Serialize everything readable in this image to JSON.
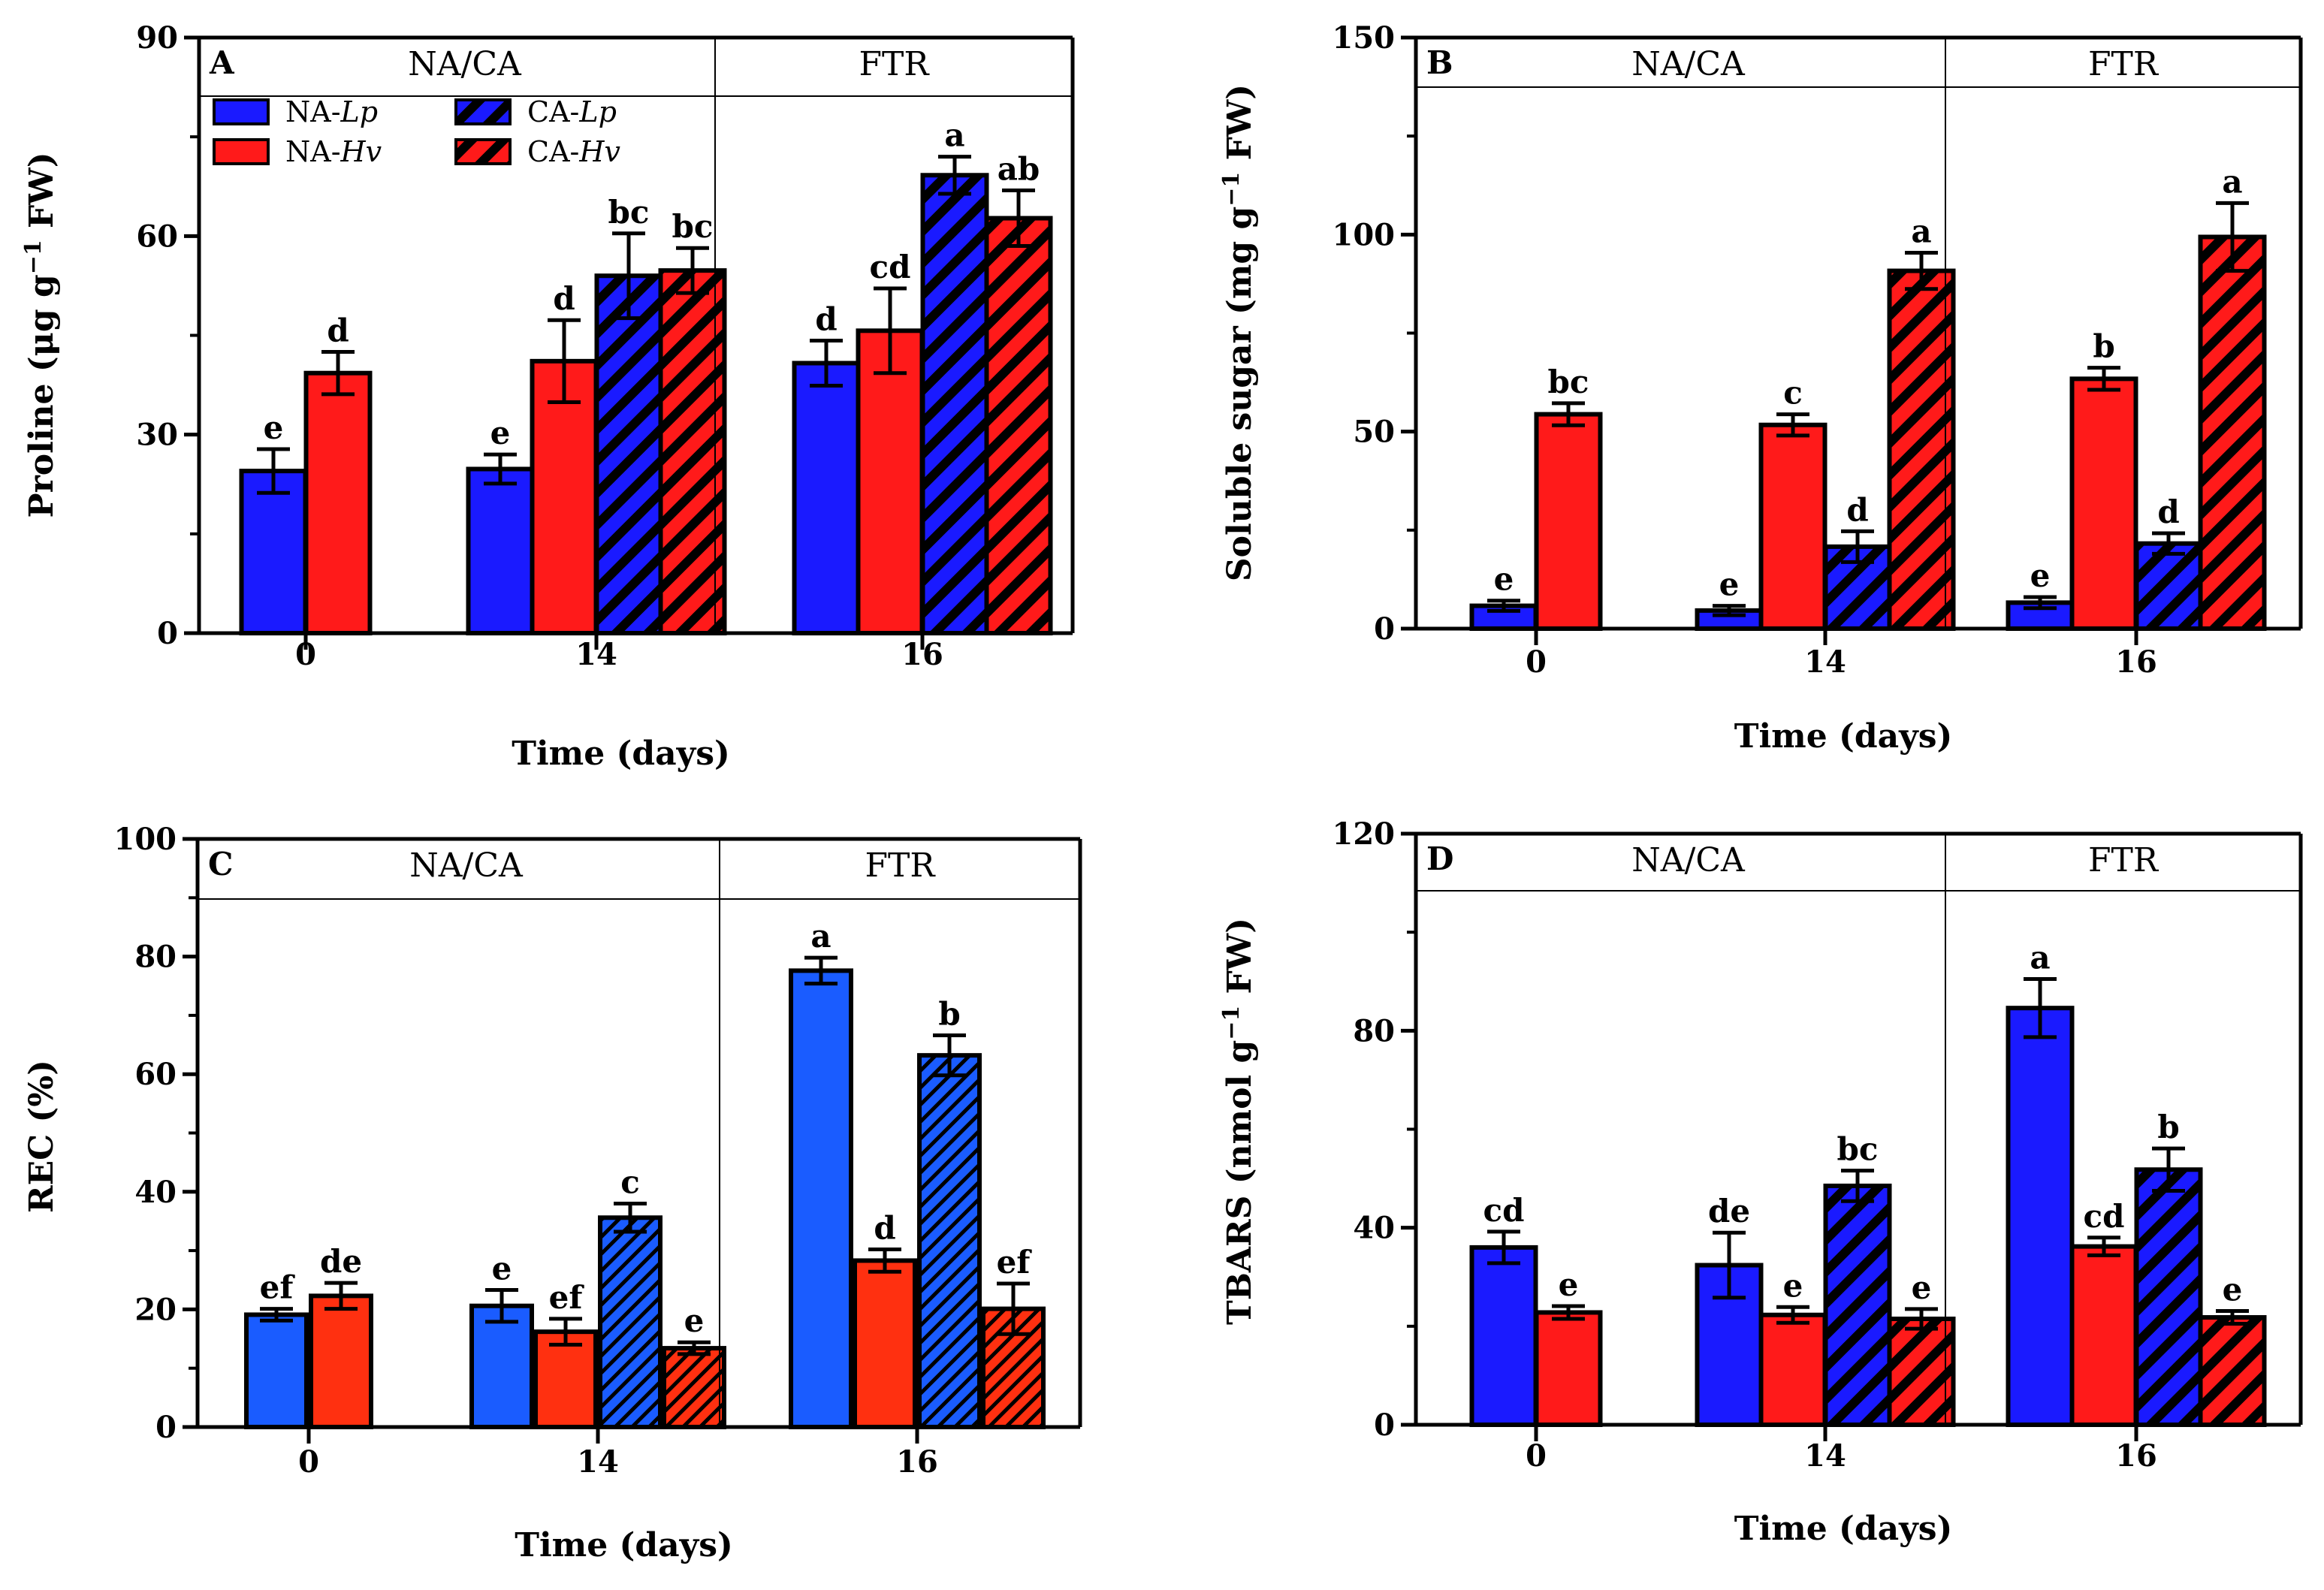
{
  "colors": {
    "Lp": "#1a1aff",
    "Hv": "#ff1a1a",
    "Lp_C": "#1a5cff",
    "Hv_C": "#ff3010"
  },
  "legend": {
    "items": [
      {
        "series": "NA-Lp",
        "prefix": "NA-",
        "italic": "Lp",
        "color": "#1a1aff",
        "hatched": false
      },
      {
        "series": "CA-Lp",
        "prefix": "CA-",
        "italic": "Lp",
        "color": "#1a1aff",
        "hatched": true
      },
      {
        "series": "NA-Hv",
        "prefix": "NA-",
        "italic": "Hv",
        "color": "#ff1a1a",
        "hatched": false
      },
      {
        "series": "CA-Hv",
        "prefix": "CA-",
        "italic": "Hv",
        "color": "#ff1a1a",
        "hatched": true
      }
    ]
  },
  "chart_data": [
    {
      "type": "bar",
      "panel": "A",
      "ylabel_main": "Proline (μg g",
      "ylabel_sup": "−1",
      "ylabel_end": " FW)",
      "xlabel": "Time (days)",
      "ylim": [
        0,
        90
      ],
      "yticks": [
        "0",
        "30",
        "60",
        "90"
      ],
      "categories": [
        "0",
        "14",
        "16"
      ],
      "section_left": "NA/CA",
      "section_right": "FTR",
      "has_legend": true,
      "series": [
        {
          "name": "NA-Lp",
          "values": [
            24.5,
            24.8,
            40.8
          ],
          "errors": [
            3.3,
            2.2,
            3.4
          ],
          "letters": [
            "e",
            "e",
            "d"
          ]
        },
        {
          "name": "NA-Hv",
          "values": [
            39.3,
            41.1,
            45.7
          ],
          "errors": [
            3.2,
            6.2,
            6.4
          ],
          "letters": [
            "d",
            "d",
            "cd"
          ]
        },
        {
          "name": "CA-Lp",
          "values": [
            null,
            54.0,
            69.2
          ],
          "errors": [
            null,
            6.4,
            2.8
          ],
          "letters": [
            "",
            "bc",
            "a"
          ]
        },
        {
          "name": "CA-Hv",
          "values": [
            null,
            54.8,
            62.7
          ],
          "errors": [
            null,
            3.4,
            4.2
          ],
          "letters": [
            "",
            "bc",
            "ab"
          ]
        }
      ]
    },
    {
      "type": "bar",
      "panel": "B",
      "ylabel_main": "Soluble sugar (mg g",
      "ylabel_sup": "−1",
      "ylabel_end": " FW)",
      "xlabel": "Time (days)",
      "ylim": [
        0,
        150
      ],
      "yticks": [
        "0",
        "50",
        "100",
        "150"
      ],
      "categories": [
        "0",
        "14",
        "16"
      ],
      "section_left": "NA/CA",
      "section_right": "FTR",
      "has_legend": false,
      "series": [
        {
          "name": "NA-Lp",
          "values": [
            5.8,
            4.6,
            6.6
          ],
          "errors": [
            1.3,
            1.2,
            1.4
          ],
          "letters": [
            "e",
            "e",
            "e"
          ]
        },
        {
          "name": "NA-Hv",
          "values": [
            54.4,
            51.7,
            63.4
          ],
          "errors": [
            2.8,
            2.7,
            2.8
          ],
          "letters": [
            "bc",
            "c",
            "b"
          ]
        },
        {
          "name": "CA-Lp",
          "values": [
            null,
            20.8,
            21.6
          ],
          "errors": [
            null,
            3.9,
            2.6
          ],
          "letters": [
            "",
            "d",
            "d"
          ]
        },
        {
          "name": "CA-Hv",
          "values": [
            null,
            90.8,
            99.4
          ],
          "errors": [
            null,
            4.6,
            8.6
          ],
          "letters": [
            "",
            "a",
            "a"
          ]
        }
      ]
    },
    {
      "type": "bar",
      "panel": "C",
      "ylabel_main": "REC (%)",
      "ylabel_sup": "",
      "ylabel_end": "",
      "xlabel": "Time (days)",
      "ylim": [
        0,
        100
      ],
      "yticks": [
        "0",
        "20",
        "40",
        "60",
        "80",
        "100"
      ],
      "categories": [
        "0",
        "14",
        "16"
      ],
      "section_left": "NA/CA",
      "section_right": "FTR",
      "has_legend": false,
      "series": [
        {
          "name": "NA-Lp",
          "values": [
            19.1,
            20.6,
            77.6
          ],
          "errors": [
            1.0,
            2.7,
            2.2
          ],
          "letters": [
            "ef",
            "e",
            "a"
          ]
        },
        {
          "name": "NA-Hv",
          "values": [
            22.3,
            16.2,
            28.3
          ],
          "errors": [
            2.2,
            2.2,
            1.9
          ],
          "letters": [
            "de",
            "ef",
            "d"
          ]
        },
        {
          "name": "CA-Lp",
          "values": [
            null,
            35.6,
            63.2
          ],
          "errors": [
            null,
            2.4,
            3.4
          ],
          "letters": [
            "",
            "c",
            "b"
          ]
        },
        {
          "name": "CA-Hv",
          "values": [
            null,
            13.4,
            20.1
          ],
          "errors": [
            null,
            1.0,
            4.3
          ],
          "letters": [
            "",
            "e",
            "ef"
          ]
        }
      ]
    },
    {
      "type": "bar",
      "panel": "D",
      "ylabel_main": "TBARS (nmol g",
      "ylabel_sup": "−1",
      "ylabel_end": " FW)",
      "xlabel": "Time (days)",
      "ylim": [
        0,
        120
      ],
      "yticks": [
        "0",
        "40",
        "80",
        "120"
      ],
      "categories": [
        "0",
        "14",
        "16"
      ],
      "section_left": "NA/CA",
      "section_right": "FTR",
      "has_legend": false,
      "series": [
        {
          "name": "NA-Lp",
          "values": [
            36.0,
            32.4,
            84.6
          ],
          "errors": [
            3.2,
            6.6,
            5.9
          ],
          "letters": [
            "cd",
            "de",
            "a"
          ]
        },
        {
          "name": "NA-Hv",
          "values": [
            22.8,
            22.3,
            36.2
          ],
          "errors": [
            1.3,
            1.6,
            1.8
          ],
          "letters": [
            "e",
            "e",
            "cd"
          ]
        },
        {
          "name": "CA-Lp",
          "values": [
            null,
            48.5,
            51.8
          ],
          "errors": [
            null,
            3.1,
            4.3
          ],
          "letters": [
            "",
            "bc",
            "b"
          ]
        },
        {
          "name": "CA-Hv",
          "values": [
            null,
            21.5,
            21.8
          ],
          "errors": [
            null,
            2.0,
            1.3
          ],
          "letters": [
            "",
            "e",
            "e"
          ]
        }
      ]
    }
  ]
}
